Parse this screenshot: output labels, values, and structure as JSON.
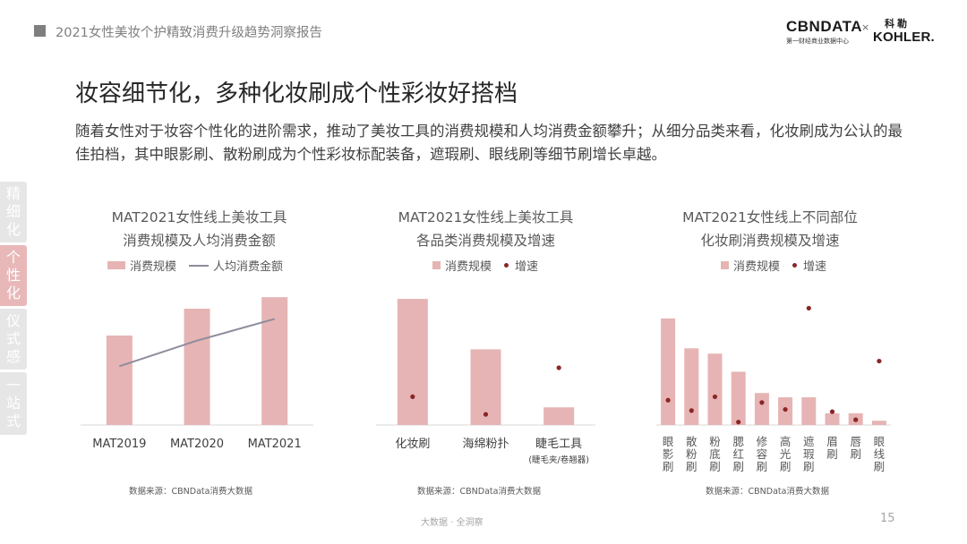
{
  "header": {
    "report_title": "2021女性美妆个护精致消费升级趋势洞察报告",
    "logo_cbn": "CBNDATA",
    "logo_cbn_sub": "第一财经商业数据中心",
    "logo_separator": "×",
    "logo_kohler_cn": "科勒",
    "logo_kohler": "KOHLER."
  },
  "page": {
    "heading": "妆容细节化，多种化妆刷成个性彩妆好搭档",
    "intro": "随着女性对于妆容个性化的进阶需求，推动了美妆工具的消费规模和人均消费金额攀升；从细分品类来看，化妆刷成为公认的最佳拍档，其中眼影刷、散粉刷成为个性彩妆标配装备，遮瑕刷、眼线刷等细节刷增长卓越。"
  },
  "side_tabs": [
    {
      "label": "精细化",
      "active": false
    },
    {
      "label": "个性化",
      "active": true
    },
    {
      "label": "仪式感",
      "active": false
    },
    {
      "label": "一站式",
      "active": false
    }
  ],
  "colors": {
    "bar": "#e6b4b4",
    "line": "#8e8c9c",
    "dot": "#8b2626",
    "axis": "#d9d9d9"
  },
  "chart_data": [
    {
      "type": "bar",
      "title_line1": "MAT2021女性线上美妆工具",
      "title_line2": "消费规模及人均消费金额",
      "categories": [
        "MAT2019",
        "MAT2020",
        "MAT2021"
      ],
      "series": [
        {
          "name": "消费规模",
          "kind": "bar",
          "values": [
            0.7,
            0.91,
            1.0
          ]
        },
        {
          "name": "人均消费金额",
          "kind": "line",
          "values": [
            0.46,
            0.66,
            0.83
          ]
        }
      ],
      "ylim": [
        0,
        1.05
      ],
      "source": "数据来源：CBNData消费大数据"
    },
    {
      "type": "bar",
      "title_line1": "MAT2021女性线上美妆工具",
      "title_line2": "各品类消费规模及增速",
      "categories": [
        "化妆刷",
        "海绵粉扑",
        "睫毛工具"
      ],
      "category_notes": [
        "",
        "",
        "(睫毛夹/卷翘器)"
      ],
      "series": [
        {
          "name": "消费规模",
          "kind": "bar",
          "values": [
            1.0,
            0.6,
            0.14
          ]
        },
        {
          "name": "增速",
          "kind": "dot",
          "values": [
            0.21,
            0.07,
            0.44
          ]
        }
      ],
      "ylim": [
        0,
        1.05
      ],
      "source": "数据来源：CBNData消费大数据"
    },
    {
      "type": "bar",
      "title_line1": "MAT2021女性线上不同部位",
      "title_line2": "化妆刷消费规模及增速",
      "categories": [
        "眼影刷",
        "散粉刷",
        "粉底刷",
        "腮红刷",
        "修容刷",
        "高光刷",
        "遮瑕刷",
        "眉刷",
        "唇刷",
        "眼线刷"
      ],
      "series": [
        {
          "name": "消费规模",
          "kind": "bar",
          "values": [
            1.0,
            0.72,
            0.67,
            0.5,
            0.3,
            0.26,
            0.26,
            0.11,
            0.11,
            0.04
          ]
        },
        {
          "name": "增速",
          "kind": "dot",
          "values": [
            0.2,
            0.11,
            0.23,
            0.01,
            0.18,
            0.12,
            1.0,
            0.1,
            0.03,
            0.54
          ]
        }
      ],
      "ylim": [
        0,
        1.05
      ],
      "source": "数据来源：CBNData消费大数据"
    }
  ],
  "footer": {
    "text": "大数据 · 全洞察",
    "page_number": "15"
  }
}
